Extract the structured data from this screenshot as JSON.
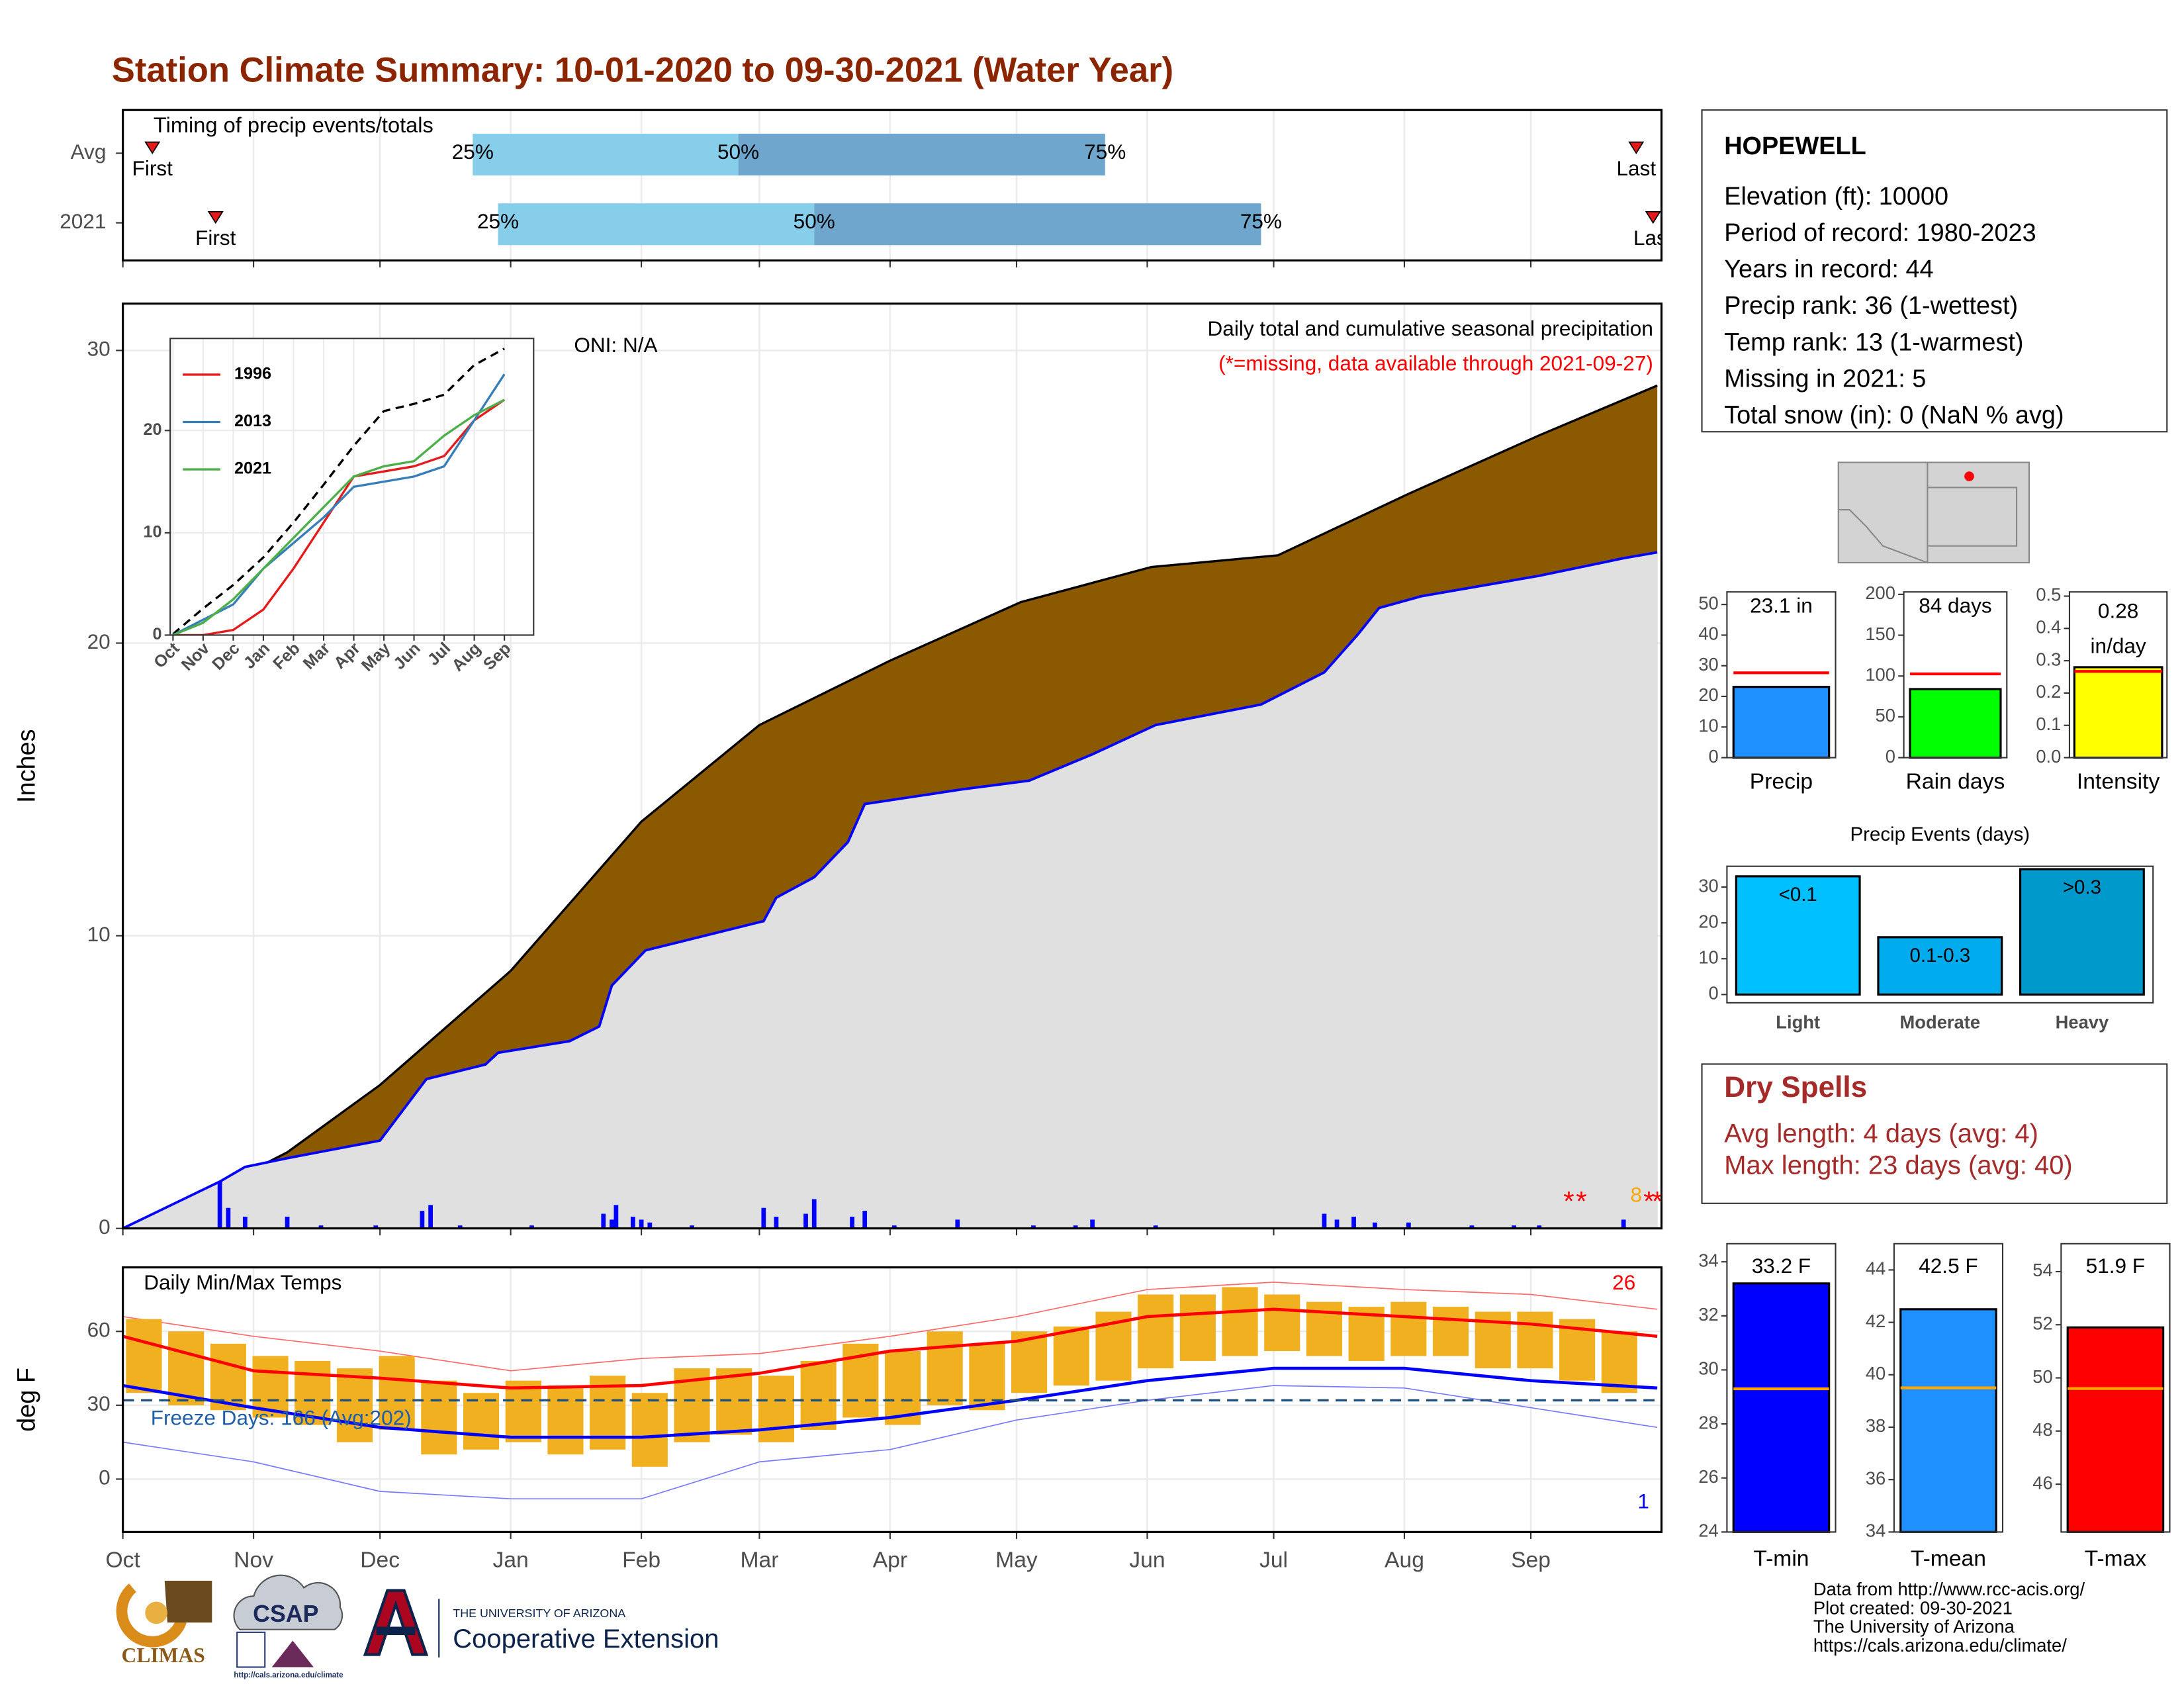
{
  "title": "Station Climate Summary: 10-01-2020 to 09-30-2021 (Water Year)",
  "station": {
    "name": "HOPEWELL",
    "lines": [
      "Elevation (ft): 10000",
      "Period of record: 1980-2023",
      "Years in record: 44",
      "Precip rank: 36 (1-wettest)",
      "Temp rank: 13 (1-warmest)",
      "Missing in 2021: 5",
      "Total snow (in): 0 (NaN % avg)"
    ]
  },
  "dry_spells": {
    "title": "Dry Spells",
    "lines": [
      "Avg length: 4 days (avg: 4)",
      "Max length: 23 days (avg: 40)"
    ]
  },
  "footer": [
    "Data from http://www.rcc-acis.org/",
    "Plot created: 09-30-2021",
    "The University of Arizona",
    "https://cals.arizona.edu/climate/"
  ],
  "logos": {
    "climas": "CLIMAS",
    "csap": "CSAP",
    "csap_url": "http://cals.arizona.edu/climate",
    "ua": "THE UNIVERSITY OF ARIZONA",
    "extension": "Cooperative Extension"
  },
  "chart_data": [
    {
      "type": "timing",
      "title": "Timing of precip events/totals",
      "categories": [
        "Avg",
        "2021"
      ],
      "xlim": [
        0,
        365
      ],
      "xticks": [
        0,
        31,
        61,
        92,
        123,
        151,
        182,
        212,
        243,
        273,
        304,
        334
      ],
      "grid": true,
      "rows": [
        {
          "first": 7,
          "q25": 83,
          "q50": 146,
          "q75": 233,
          "last": 359
        },
        {
          "first": 22,
          "q25": 89,
          "q50": 164,
          "q75": 270,
          "last": 363
        }
      ],
      "labels": {
        "first": "First",
        "last": "Last",
        "q25": "25%",
        "q50": "50%",
        "q75": "75%"
      },
      "colors": [
        "#87ceeb",
        "#6ea6cd"
      ],
      "marker_color": "#e31a1c"
    },
    {
      "type": "area",
      "ylabel": "Inches",
      "note": "Daily total and cumulative seasonal precipitation",
      "missing_note": "(*=missing, data available through 2021-09-27)",
      "oni": "ONI: N/A",
      "xlim": [
        0,
        365
      ],
      "xticks": [
        0,
        31,
        61,
        92,
        123,
        151,
        182,
        212,
        243,
        273,
        304,
        334
      ],
      "ylim": [
        0,
        31.6
      ],
      "yticks": [
        0,
        10,
        20,
        30
      ],
      "grid": true,
      "average_cumulative": {
        "color": "#8b5a00",
        "x": [
          0,
          24,
          39,
          61,
          92,
          123,
          151,
          182,
          213,
          244,
          274,
          305,
          336,
          364
        ],
        "values": [
          0,
          1.5,
          2.6,
          4.9,
          8.8,
          13.9,
          17.2,
          19.4,
          21.4,
          22.6,
          23.0,
          25.1,
          27.1,
          28.8
        ]
      },
      "cumulative_2021": {
        "color": "#0000ff",
        "fill": "#e0e0e0",
        "x": [
          0,
          23,
          29,
          39,
          50,
          61,
          72,
          86,
          89,
          106,
          113,
          116,
          124,
          152,
          155,
          164,
          172,
          176,
          199,
          215,
          230,
          245,
          270,
          285,
          293,
          298,
          308,
          336,
          356,
          364
        ],
        "values": [
          0,
          1.6,
          2.1,
          2.4,
          2.7,
          3.0,
          5.1,
          5.6,
          6.0,
          6.4,
          6.9,
          8.3,
          9.5,
          10.5,
          11.3,
          12.0,
          13.2,
          14.5,
          15.0,
          15.3,
          16.2,
          17.2,
          17.9,
          19.0,
          20.3,
          21.2,
          21.6,
          22.3,
          22.9,
          23.1
        ]
      },
      "daily": {
        "color": "#0000ff",
        "x": [
          23,
          25,
          29,
          39,
          47,
          60,
          71,
          73,
          80,
          97,
          114,
          116,
          117,
          121,
          123,
          125,
          135,
          152,
          155,
          162,
          164,
          173,
          176,
          183,
          198,
          216,
          226,
          230,
          245,
          285,
          288,
          292,
          297,
          305,
          320,
          330,
          336,
          356
        ],
        "values": [
          1.6,
          0.7,
          0.4,
          0.4,
          0.1,
          0.1,
          0.6,
          0.8,
          0.1,
          0.1,
          0.5,
          0.3,
          0.8,
          0.4,
          0.3,
          0.2,
          0.1,
          0.7,
          0.4,
          0.5,
          1.0,
          0.4,
          0.6,
          0.1,
          0.3,
          0.1,
          0.1,
          0.3,
          0.1,
          0.5,
          0.3,
          0.4,
          0.2,
          0.2,
          0.1,
          0.1,
          0.1,
          0.3
        ]
      },
      "missing_marker": {
        "symbol": "*",
        "color": "#ff0000",
        "days": [
          343,
          346,
          362,
          364
        ]
      },
      "annotations": [
        {
          "text": "8",
          "x": 359,
          "y": 1.1,
          "color": "#ffa500"
        }
      ]
    },
    {
      "type": "line",
      "categories": [
        "Oct",
        "Nov",
        "Dec",
        "Jan",
        "Feb",
        "Mar",
        "Apr",
        "May",
        "Jun",
        "Jul",
        "Aug",
        "Sep"
      ],
      "ylim": [
        0,
        29
      ],
      "yticks": [
        0,
        10,
        20
      ],
      "grid": true,
      "series": [
        {
          "color": "#000000",
          "dashed": true,
          "values": [
            0.1,
            2.6,
            4.9,
            7.6,
            11,
            14.7,
            18.5,
            21.9,
            22.6,
            23.5,
            26.4,
            28
          ]
        },
        {
          "name": "1996",
          "color": "#e41a1c",
          "values": [
            0,
            0,
            0.5,
            2.5,
            6.5,
            11,
            15.5,
            16,
            16.5,
            17.5,
            21,
            23
          ]
        },
        {
          "name": "2013",
          "color": "#377eb8",
          "values": [
            0,
            1.5,
            3,
            6.5,
            9,
            11.5,
            14.5,
            15,
            15.5,
            16.5,
            21,
            25.5
          ]
        },
        {
          "name": "2021",
          "color": "#4daf4a",
          "values": [
            0,
            1.2,
            3.5,
            6.5,
            9.5,
            12.5,
            15.5,
            16.5,
            17,
            19.5,
            21.5,
            23
          ]
        }
      ]
    },
    {
      "type": "temperature",
      "title": "Daily Min/Max Temps",
      "ylabel": "deg F",
      "freeze_text": "Freeze Days: 166 (Avg:202)",
      "xlim": [
        0,
        365
      ],
      "xticks": [
        {
          "value": 0,
          "label": "Oct"
        },
        {
          "value": 31,
          "label": "Nov"
        },
        {
          "value": 61,
          "label": "Dec"
        },
        {
          "value": 92,
          "label": "Jan"
        },
        {
          "value": 123,
          "label": "Feb"
        },
        {
          "value": 151,
          "label": "Mar"
        },
        {
          "value": 182,
          "label": "Apr"
        },
        {
          "value": 212,
          "label": "May"
        },
        {
          "value": 243,
          "label": "Jun"
        },
        {
          "value": 273,
          "label": "Jul"
        },
        {
          "value": 304,
          "label": "Aug"
        },
        {
          "value": 334,
          "label": "Sep"
        }
      ],
      "ylim": [
        -21.5,
        86
      ],
      "yticks": [
        0,
        30,
        60
      ],
      "grid": true,
      "freeze_line": 32,
      "curve_x": [
        0,
        31,
        61,
        92,
        123,
        151,
        182,
        212,
        243,
        273,
        304,
        334,
        364
      ],
      "avg_max": [
        58,
        44,
        41,
        37,
        38,
        43,
        52,
        56,
        66,
        69,
        66,
        63,
        58
      ],
      "avg_min": [
        38,
        29,
        21,
        17,
        17,
        20,
        25,
        32,
        40,
        45,
        45,
        40,
        37
      ],
      "record_max": [
        66,
        58,
        52,
        44,
        49,
        51,
        58,
        66,
        77,
        80,
        77,
        75,
        69
      ],
      "record_min": [
        15,
        7,
        -5,
        -8,
        -8,
        7,
        12,
        24,
        32,
        38,
        37,
        29,
        21
      ],
      "range_x": [
        5,
        15,
        25,
        35,
        45,
        55,
        65,
        75,
        85,
        95,
        105,
        115,
        125,
        135,
        145,
        155,
        165,
        175,
        185,
        195,
        205,
        215,
        225,
        235,
        245,
        255,
        265,
        275,
        285,
        295,
        305,
        315,
        325,
        335,
        345,
        355
      ],
      "low": [
        35,
        30,
        28,
        25,
        22,
        15,
        20,
        10,
        12,
        15,
        10,
        12,
        5,
        15,
        18,
        15,
        20,
        25,
        22,
        30,
        28,
        35,
        38,
        40,
        45,
        48,
        50,
        52,
        50,
        48,
        50,
        50,
        45,
        45,
        40,
        35
      ],
      "high": [
        65,
        60,
        55,
        50,
        48,
        45,
        50,
        40,
        35,
        40,
        38,
        42,
        35,
        45,
        45,
        42,
        48,
        55,
        52,
        60,
        55,
        60,
        62,
        68,
        75,
        75,
        78,
        75,
        72,
        70,
        72,
        70,
        68,
        68,
        65,
        60
      ],
      "annotations": [
        {
          "text": "26",
          "color": "#ff0000"
        },
        {
          "text": "1",
          "color": "#0000ff"
        }
      ]
    },
    {
      "type": "bar",
      "categories": [
        "Precip"
      ],
      "values": [
        23.1
      ],
      "value_labels": [
        "23.1 in"
      ],
      "color": "#1e90ff",
      "average": 27.7,
      "average_color": "#ff0000",
      "ylim": [
        0,
        54.1
      ],
      "yticks": [
        0,
        10,
        20,
        30,
        40,
        50
      ]
    },
    {
      "type": "bar",
      "categories": [
        "Rain days"
      ],
      "values": [
        84
      ],
      "value_labels": [
        "84 days"
      ],
      "color": "#00ff00",
      "average": 102.6,
      "average_color": "#ff0000",
      "ylim": [
        0,
        203
      ],
      "yticks": [
        0,
        50,
        100,
        150,
        200
      ]
    },
    {
      "type": "bar",
      "categories": [
        "Intensity"
      ],
      "values": [
        0.28
      ],
      "value_labels": [
        "0.28\nin/day"
      ],
      "color": "#ffff00",
      "average": 0.267,
      "average_color": "#ff0000",
      "ylim": [
        0,
        0.513
      ],
      "yticks": [
        {
          "value": 0,
          "label": "0.0"
        },
        0.1,
        0.2,
        0.3,
        0.4,
        0.5
      ]
    },
    {
      "type": "bar",
      "title": "Precip Events (days)",
      "categories": [
        "Light",
        "Moderate",
        "Heavy"
      ],
      "values": [
        33,
        16,
        35
      ],
      "value_labels": [
        "<0.1",
        "0.1-0.3",
        ">0.3"
      ],
      "colors": [
        "#00bfff",
        "#00acee",
        "#0099cc"
      ],
      "ylim": [
        -2.3,
        35.8
      ],
      "yticks": [
        0,
        10,
        20,
        30
      ]
    },
    {
      "type": "bar",
      "categories": [
        "T-min"
      ],
      "values": [
        33.2
      ],
      "value_labels": [
        "33.2 F"
      ],
      "color": "#0000ff",
      "average": 29.3,
      "average_color": "#ffa500",
      "ylim": [
        24,
        34.67
      ],
      "yticks": [
        24,
        26,
        28,
        30,
        32,
        34
      ]
    },
    {
      "type": "bar",
      "categories": [
        "T-mean"
      ],
      "values": [
        42.5
      ],
      "value_labels": [
        "42.5 F"
      ],
      "color": "#1e90ff",
      "average": 39.5,
      "average_color": "#ffa500",
      "ylim": [
        34,
        45
      ],
      "yticks": [
        34,
        36,
        38,
        40,
        42,
        44
      ]
    },
    {
      "type": "bar",
      "categories": [
        "T-max"
      ],
      "values": [
        51.9
      ],
      "value_labels": [
        "51.9 F"
      ],
      "color": "#ff0000",
      "average": 49.6,
      "average_color": "#ffa500",
      "ylim": [
        44.2,
        55.05
      ],
      "yticks": [
        46,
        48,
        50,
        52,
        54
      ]
    }
  ]
}
